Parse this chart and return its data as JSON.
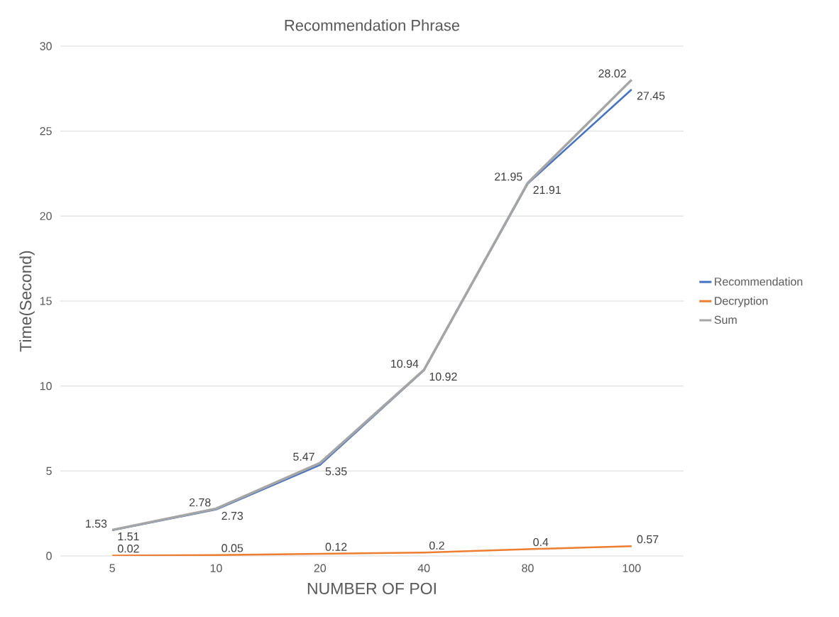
{
  "chart_data": {
    "type": "line",
    "title": "Recommendation Phrase",
    "xlabel": "NUMBER OF POI",
    "ylabel": "Time(Second)",
    "categories": [
      "5",
      "10",
      "20",
      "40",
      "80",
      "100"
    ],
    "series": [
      {
        "name": "Recommendation",
        "color": "#4472c4",
        "values": [
          1.51,
          2.73,
          5.35,
          10.92,
          21.91,
          27.45
        ]
      },
      {
        "name": "Decryption",
        "color": "#ed7d31",
        "values": [
          0.02,
          0.05,
          0.12,
          0.2,
          0.4,
          0.57
        ]
      },
      {
        "name": "Sum",
        "color": "#a5a5a5",
        "values": [
          1.53,
          2.78,
          5.47,
          10.94,
          21.95,
          28.02
        ]
      }
    ],
    "ylim": [
      0,
      30
    ],
    "yticks": [
      0,
      5,
      10,
      15,
      20,
      25,
      30
    ],
    "grid": "y",
    "legend": "right",
    "marker": "none",
    "data_labels": true
  }
}
